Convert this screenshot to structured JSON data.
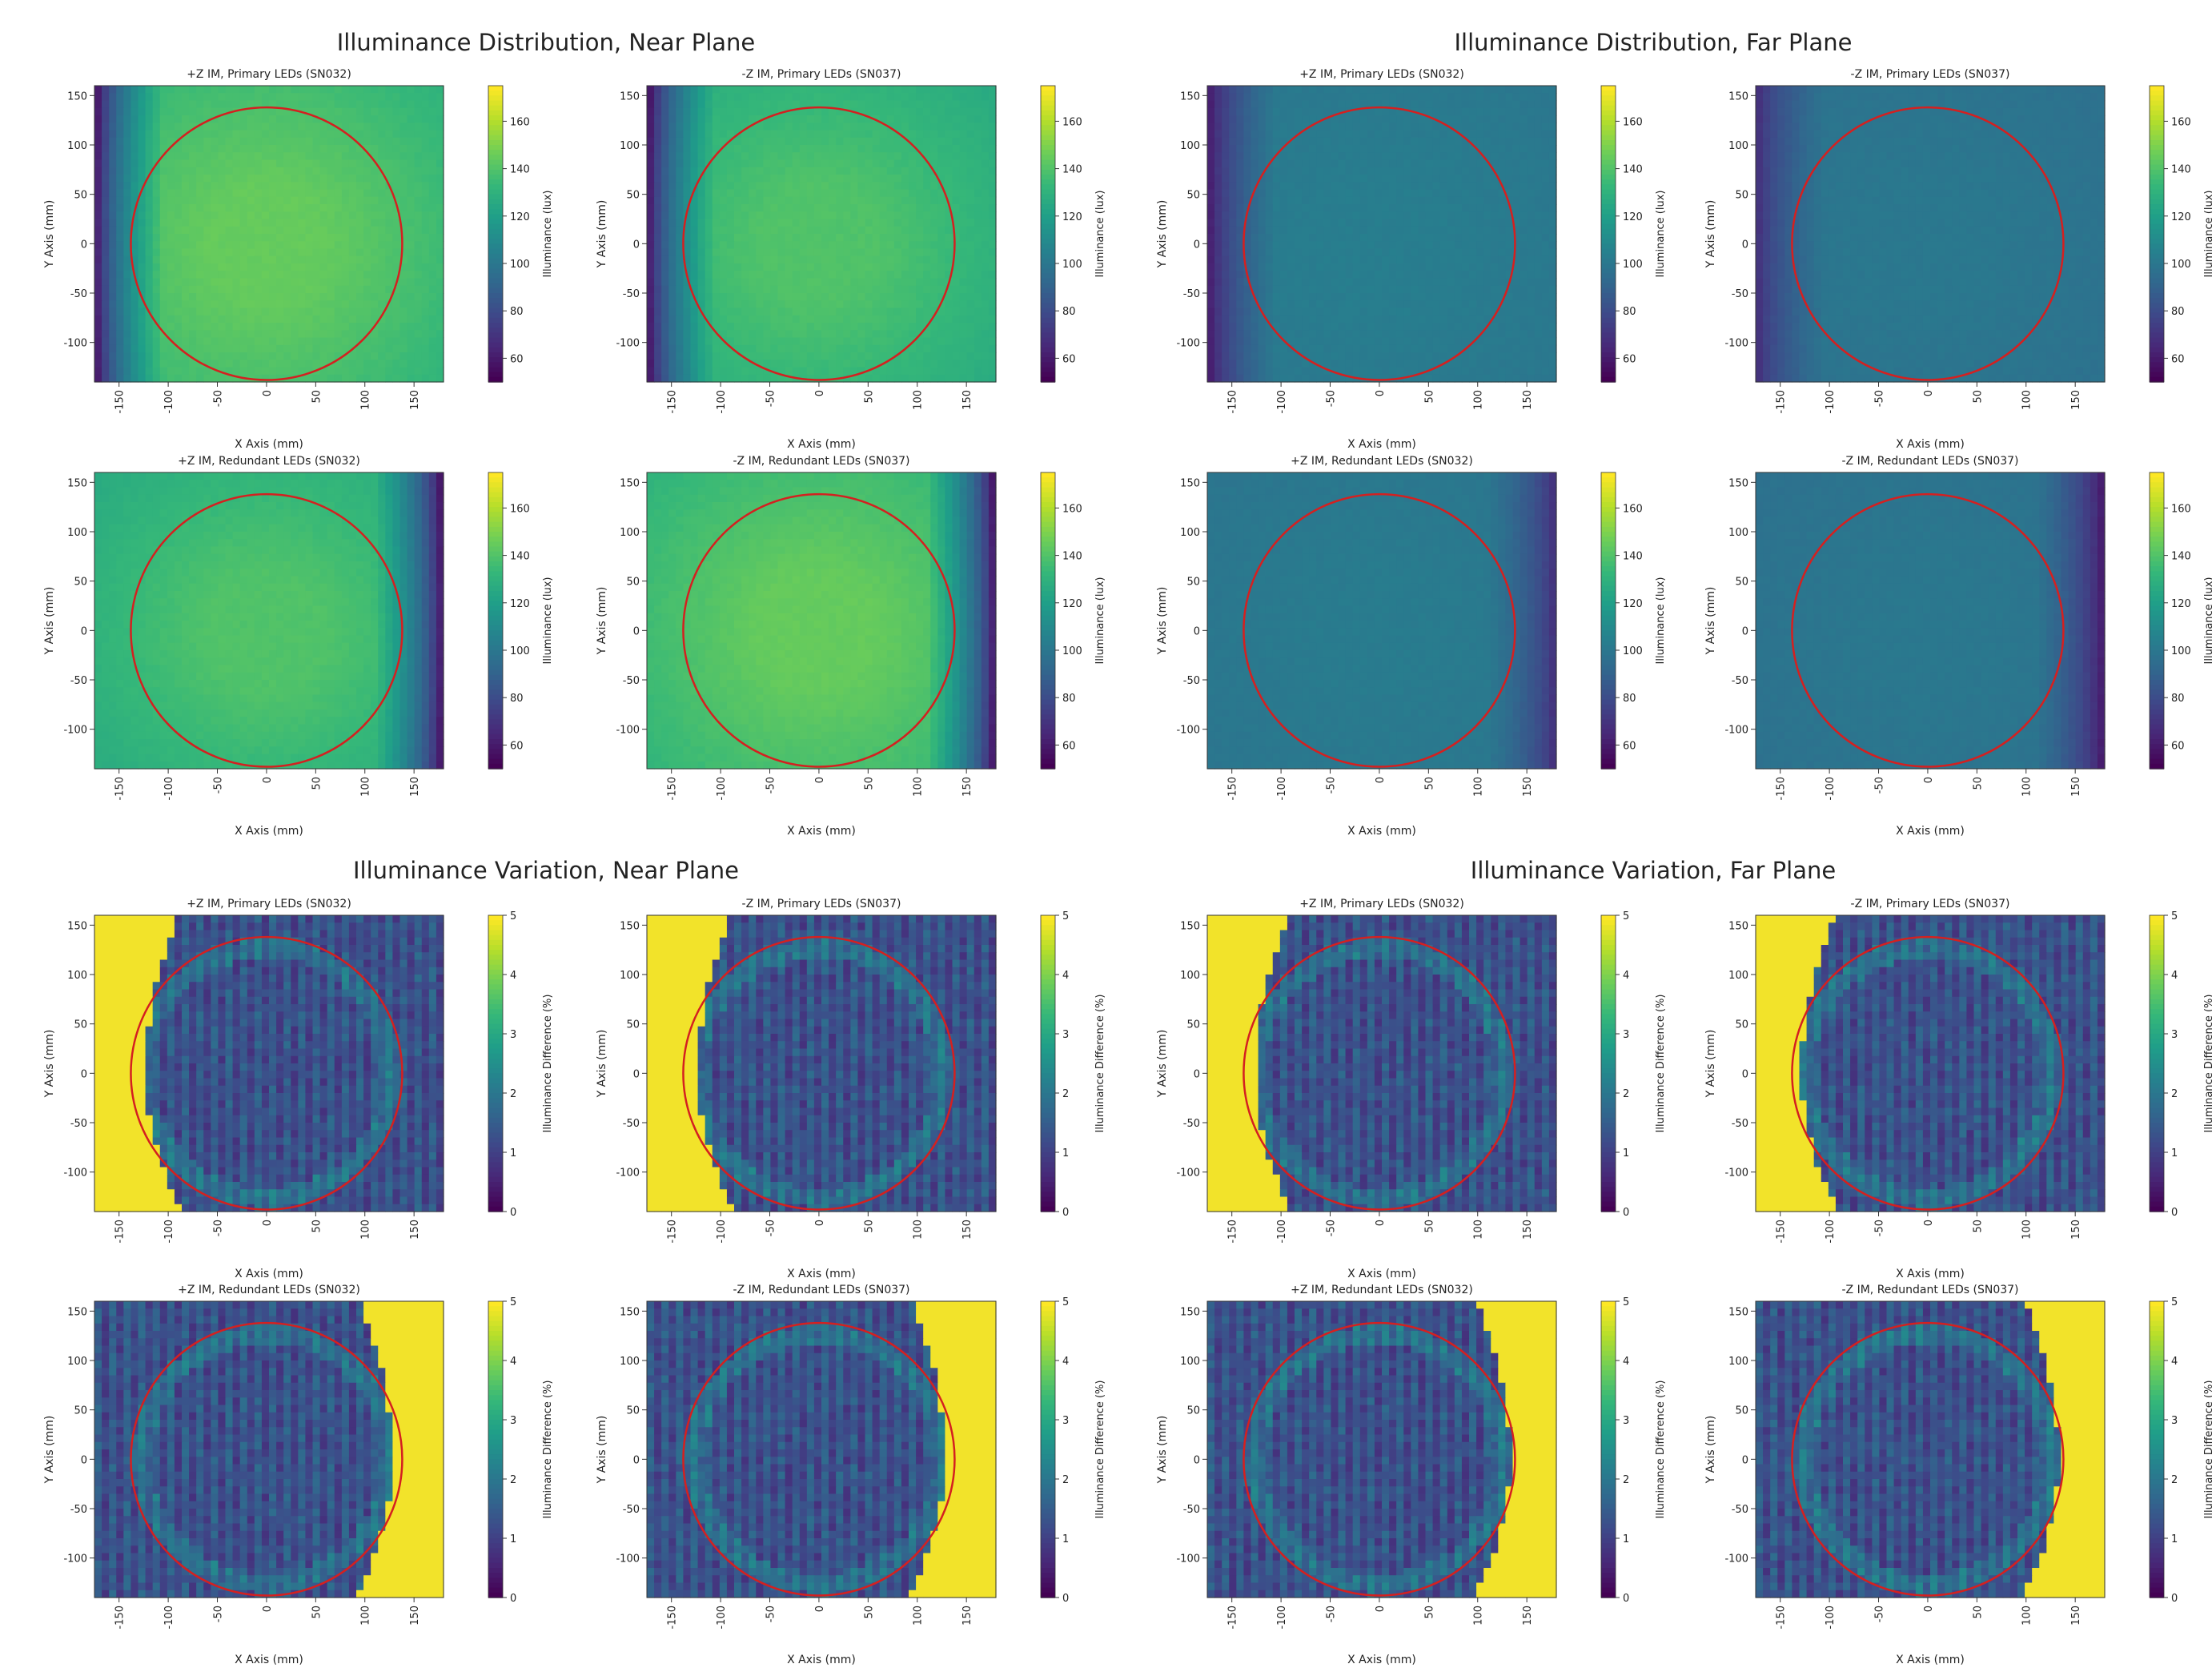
{
  "section_titles": {
    "dist_near": "Illuminance Distribution, Near Plane",
    "dist_far": "Illuminance Distribution, Far Plane",
    "var_near": "Illuminance Variation, Near Plane",
    "var_far": "Illuminance Variation, Far Plane"
  },
  "colors": {
    "circle": "#d42020",
    "viridis": [
      "#440154",
      "#482878",
      "#3e4989",
      "#31688e",
      "#26828e",
      "#1f9e89",
      "#35b779",
      "#6ece58",
      "#b5de2b",
      "#fde725"
    ],
    "bad_region": "#f2e32a"
  },
  "chart_data": [
    {
      "id": "dist-near-pz-primary",
      "type": "heatmap",
      "title": "+Z IM, Primary LEDs (SN032)",
      "xlabel": "X Axis (mm)",
      "ylabel": "Y Axis (mm)",
      "colorbar_label": "Illuminance (lux)",
      "clim": [
        50,
        175
      ],
      "xlim": [
        -175,
        180
      ],
      "ylim": [
        -140,
        160
      ],
      "xticks": [
        "-150",
        "-100",
        "-50",
        "0",
        "50",
        "100",
        "150"
      ],
      "yticks": [
        "150",
        "100",
        "50",
        "0",
        "-50",
        "-100"
      ],
      "cticks": [
        "160",
        "140",
        "120",
        "100",
        "80",
        "60"
      ],
      "circle": {
        "cx": 0,
        "cy": 0,
        "r": 138
      },
      "field": {
        "kind": "dist",
        "center": 145,
        "dark_side": "left",
        "edge_low": 55
      }
    },
    {
      "id": "dist-near-mz-primary",
      "type": "heatmap",
      "title": "-Z IM, Primary LEDs (SN037)",
      "xlabel": "X Axis (mm)",
      "ylabel": "Y Axis (mm)",
      "colorbar_label": "Illuminance (lux)",
      "clim": [
        50,
        175
      ],
      "xlim": [
        -175,
        180
      ],
      "ylim": [
        -140,
        160
      ],
      "xticks": [
        "-150",
        "-100",
        "-50",
        "0",
        "50",
        "100",
        "150"
      ],
      "yticks": [
        "150",
        "100",
        "50",
        "0",
        "-50",
        "-100"
      ],
      "cticks": [
        "160",
        "140",
        "120",
        "100",
        "80",
        "60"
      ],
      "circle": {
        "cx": 0,
        "cy": 0,
        "r": 138
      },
      "field": {
        "kind": "dist",
        "center": 140,
        "dark_side": "left",
        "edge_low": 55
      }
    },
    {
      "id": "dist-far-pz-primary",
      "type": "heatmap",
      "title": "+Z IM, Primary LEDs (SN032)",
      "xlabel": "X Axis (mm)",
      "ylabel": "Y Axis (mm)",
      "colorbar_label": "Illuminance (lux)",
      "clim": [
        50,
        175
      ],
      "xlim": [
        -175,
        180
      ],
      "ylim": [
        -140,
        160
      ],
      "xticks": [
        "-150",
        "-100",
        "-50",
        "0",
        "50",
        "100",
        "150"
      ],
      "yticks": [
        "150",
        "100",
        "50",
        "0",
        "-50",
        "-100"
      ],
      "cticks": [
        "160",
        "140",
        "120",
        "100",
        "80",
        "60"
      ],
      "circle": {
        "cx": 0,
        "cy": 0,
        "r": 138
      },
      "field": {
        "kind": "dist",
        "center": 103,
        "dark_side": "left",
        "edge_low": 55
      }
    },
    {
      "id": "dist-far-mz-primary",
      "type": "heatmap",
      "title": "-Z IM, Primary LEDs (SN037)",
      "xlabel": "X Axis (mm)",
      "ylabel": "Y Axis (mm)",
      "colorbar_label": "Illuminance (lux)",
      "clim": [
        50,
        175
      ],
      "xlim": [
        -175,
        180
      ],
      "ylim": [
        -140,
        160
      ],
      "xticks": [
        "-150",
        "-100",
        "-50",
        "0",
        "50",
        "100",
        "150"
      ],
      "yticks": [
        "150",
        "100",
        "50",
        "0",
        "-50",
        "-100"
      ],
      "cticks": [
        "160",
        "140",
        "120",
        "100",
        "80",
        "60"
      ],
      "circle": {
        "cx": 0,
        "cy": 0,
        "r": 138
      },
      "field": {
        "kind": "dist",
        "center": 100,
        "dark_side": "left",
        "edge_low": 65
      }
    },
    {
      "id": "dist-near-pz-redundant",
      "type": "heatmap",
      "title": "+Z IM, Redundant LEDs (SN032)",
      "xlabel": "X Axis (mm)",
      "ylabel": "Y Axis (mm)",
      "colorbar_label": "Illuminance (lux)",
      "clim": [
        50,
        175
      ],
      "xlim": [
        -175,
        180
      ],
      "ylim": [
        -140,
        160
      ],
      "xticks": [
        "-150",
        "-100",
        "-50",
        "0",
        "50",
        "100",
        "150"
      ],
      "yticks": [
        "150",
        "100",
        "50",
        "0",
        "-50",
        "-100"
      ],
      "cticks": [
        "160",
        "140",
        "120",
        "100",
        "80",
        "60"
      ],
      "circle": {
        "cx": 0,
        "cy": 0,
        "r": 138
      },
      "field": {
        "kind": "dist",
        "center": 140,
        "dark_side": "right",
        "edge_low": 55
      }
    },
    {
      "id": "dist-near-mz-redundant",
      "type": "heatmap",
      "title": "-Z IM, Redundant LEDs (SN037)",
      "xlabel": "X Axis (mm)",
      "ylabel": "Y Axis (mm)",
      "colorbar_label": "Illuminance (lux)",
      "clim": [
        50,
        175
      ],
      "xlim": [
        -175,
        180
      ],
      "ylim": [
        -140,
        160
      ],
      "xticks": [
        "-150",
        "-100",
        "-50",
        "0",
        "50",
        "100",
        "150"
      ],
      "yticks": [
        "150",
        "100",
        "50",
        "0",
        "-50",
        "-100"
      ],
      "cticks": [
        "160",
        "140",
        "120",
        "100",
        "80",
        "60"
      ],
      "circle": {
        "cx": 0,
        "cy": 0,
        "r": 138
      },
      "field": {
        "kind": "dist",
        "center": 145,
        "dark_side": "right",
        "edge_low": 55
      }
    },
    {
      "id": "dist-far-pz-redundant",
      "type": "heatmap",
      "title": "+Z IM, Redundant LEDs (SN032)",
      "xlabel": "X Axis (mm)",
      "ylabel": "Y Axis (mm)",
      "colorbar_label": "Illuminance (lux)",
      "clim": [
        50,
        175
      ],
      "xlim": [
        -175,
        180
      ],
      "ylim": [
        -140,
        160
      ],
      "xticks": [
        "-150",
        "-100",
        "-50",
        "0",
        "50",
        "100",
        "150"
      ],
      "yticks": [
        "150",
        "100",
        "50",
        "0",
        "-50",
        "-100"
      ],
      "cticks": [
        "160",
        "140",
        "120",
        "100",
        "80",
        "60"
      ],
      "circle": {
        "cx": 0,
        "cy": 0,
        "r": 138
      },
      "field": {
        "kind": "dist",
        "center": 102,
        "dark_side": "right",
        "edge_low": 65
      }
    },
    {
      "id": "dist-far-mz-redundant",
      "type": "heatmap",
      "title": "-Z IM, Redundant LEDs (SN037)",
      "xlabel": "X Axis (mm)",
      "ylabel": "Y Axis (mm)",
      "colorbar_label": "Illuminance (lux)",
      "clim": [
        50,
        175
      ],
      "xlim": [
        -175,
        180
      ],
      "ylim": [
        -140,
        160
      ],
      "xticks": [
        "-150",
        "-100",
        "-50",
        "0",
        "50",
        "100",
        "150"
      ],
      "yticks": [
        "150",
        "100",
        "50",
        "0",
        "-50",
        "-100"
      ],
      "cticks": [
        "160",
        "140",
        "120",
        "100",
        "80",
        "60"
      ],
      "circle": {
        "cx": 0,
        "cy": 0,
        "r": 138
      },
      "field": {
        "kind": "dist",
        "center": 100,
        "dark_side": "right",
        "edge_low": 55
      }
    },
    {
      "id": "var-near-pz-primary",
      "type": "heatmap",
      "title": "+Z IM, Primary LEDs (SN032)",
      "xlabel": "X Axis (mm)",
      "ylabel": "Y Axis (mm)",
      "colorbar_label": "Illuminance Difference (%)",
      "clim": [
        0,
        5
      ],
      "xlim": [
        -175,
        180
      ],
      "ylim": [
        -140,
        160
      ],
      "xticks": [
        "-150",
        "-100",
        "-50",
        "0",
        "50",
        "100",
        "150"
      ],
      "yticks": [
        "150",
        "100",
        "50",
        "0",
        "-50",
        "-100"
      ],
      "cticks": [
        "5",
        "4",
        "3",
        "2",
        "1",
        "0"
      ],
      "circle": {
        "cx": 0,
        "cy": 0,
        "r": 138
      },
      "field": {
        "kind": "var",
        "bright_side": "left",
        "bright_extent": 95
      }
    },
    {
      "id": "var-near-mz-primary",
      "type": "heatmap",
      "title": "-Z IM, Primary LEDs (SN037)",
      "xlabel": "X Axis (mm)",
      "ylabel": "Y Axis (mm)",
      "colorbar_label": "Illuminance Difference (%)",
      "clim": [
        0,
        5
      ],
      "xlim": [
        -175,
        180
      ],
      "ylim": [
        -140,
        160
      ],
      "xticks": [
        "-150",
        "-100",
        "-50",
        "0",
        "50",
        "100",
        "150"
      ],
      "yticks": [
        "150",
        "100",
        "50",
        "0",
        "-50",
        "-100"
      ],
      "cticks": [
        "5",
        "4",
        "3",
        "2",
        "1",
        "0"
      ],
      "circle": {
        "cx": 0,
        "cy": 0,
        "r": 138
      },
      "field": {
        "kind": "var",
        "bright_side": "left",
        "bright_extent": 95
      }
    },
    {
      "id": "var-far-pz-primary",
      "type": "heatmap",
      "title": "+Z IM, Primary LEDs (SN032)",
      "xlabel": "X Axis (mm)",
      "ylabel": "Y Axis (mm)",
      "colorbar_label": "Illuminance Difference (%)",
      "clim": [
        0,
        5
      ],
      "xlim": [
        -175,
        180
      ],
      "ylim": [
        -140,
        160
      ],
      "xticks": [
        "-150",
        "-100",
        "-50",
        "0",
        "50",
        "100",
        "150"
      ],
      "yticks": [
        "150",
        "100",
        "50",
        "0",
        "-50",
        "-100"
      ],
      "cticks": [
        "5",
        "4",
        "3",
        "2",
        "1",
        "0"
      ],
      "circle": {
        "cx": 0,
        "cy": 0,
        "r": 138
      },
      "field": {
        "kind": "var",
        "bright_side": "left",
        "bright_extent": 90
      }
    },
    {
      "id": "var-far-mz-primary",
      "type": "heatmap",
      "title": "-Z IM, Primary LEDs (SN037)",
      "xlabel": "X Axis (mm)",
      "ylabel": "Y Axis (mm)",
      "colorbar_label": "Illuminance Difference (%)",
      "clim": [
        0,
        5
      ],
      "xlim": [
        -175,
        180
      ],
      "ylim": [
        -140,
        160
      ],
      "xticks": [
        "-150",
        "-100",
        "-50",
        "0",
        "50",
        "100",
        "150"
      ],
      "yticks": [
        "150",
        "100",
        "50",
        "0",
        "-50",
        "-100"
      ],
      "cticks": [
        "5",
        "4",
        "3",
        "2",
        "1",
        "0"
      ],
      "circle": {
        "cx": 0,
        "cy": 0,
        "r": 138
      },
      "field": {
        "kind": "var",
        "bright_side": "left",
        "bright_extent": 85
      }
    },
    {
      "id": "var-near-pz-redundant",
      "type": "heatmap",
      "title": "+Z IM, Redundant LEDs (SN032)",
      "xlabel": "X Axis (mm)",
      "ylabel": "Y Axis (mm)",
      "colorbar_label": "Illuminance Difference (%)",
      "clim": [
        0,
        5
      ],
      "xlim": [
        -175,
        180
      ],
      "ylim": [
        -140,
        160
      ],
      "xticks": [
        "-150",
        "-100",
        "-50",
        "0",
        "50",
        "100",
        "150"
      ],
      "yticks": [
        "150",
        "100",
        "50",
        "0",
        "-50",
        "-100"
      ],
      "cticks": [
        "5",
        "4",
        "3",
        "2",
        "1",
        "0"
      ],
      "circle": {
        "cx": 0,
        "cy": 0,
        "r": 138
      },
      "field": {
        "kind": "var",
        "bright_side": "right",
        "bright_extent": 95
      }
    },
    {
      "id": "var-near-mz-redundant",
      "type": "heatmap",
      "title": "-Z IM, Redundant LEDs (SN037)",
      "xlabel": "X Axis (mm)",
      "ylabel": "Y Axis (mm)",
      "colorbar_label": "Illuminance Difference (%)",
      "clim": [
        0,
        5
      ],
      "xlim": [
        -175,
        180
      ],
      "ylim": [
        -140,
        160
      ],
      "xticks": [
        "-150",
        "-100",
        "-50",
        "0",
        "50",
        "100",
        "150"
      ],
      "yticks": [
        "150",
        "100",
        "50",
        "0",
        "-50",
        "-100"
      ],
      "cticks": [
        "5",
        "4",
        "3",
        "2",
        "1",
        "0"
      ],
      "circle": {
        "cx": 0,
        "cy": 0,
        "r": 138
      },
      "field": {
        "kind": "var",
        "bright_side": "right",
        "bright_extent": 95
      }
    },
    {
      "id": "var-far-pz-redundant",
      "type": "heatmap",
      "title": "+Z IM, Redundant LEDs (SN032)",
      "xlabel": "X Axis (mm)",
      "ylabel": "Y Axis (mm)",
      "colorbar_label": "Illuminance Difference (%)",
      "clim": [
        0,
        5
      ],
      "xlim": [
        -175,
        180
      ],
      "ylim": [
        -140,
        160
      ],
      "xticks": [
        "-150",
        "-100",
        "-50",
        "0",
        "50",
        "100",
        "150"
      ],
      "yticks": [
        "150",
        "100",
        "50",
        "0",
        "-50",
        "-100"
      ],
      "cticks": [
        "5",
        "4",
        "3",
        "2",
        "1",
        "0"
      ],
      "circle": {
        "cx": 0,
        "cy": 0,
        "r": 138
      },
      "field": {
        "kind": "var",
        "bright_side": "right",
        "bright_extent": 85
      }
    },
    {
      "id": "var-far-mz-redundant",
      "type": "heatmap",
      "title": "-Z IM, Redundant LEDs (SN037)",
      "xlabel": "X Axis (mm)",
      "ylabel": "Y Axis (mm)",
      "colorbar_label": "Illuminance Difference (%)",
      "clim": [
        0,
        5
      ],
      "xlim": [
        -175,
        180
      ],
      "ylim": [
        -140,
        160
      ],
      "xticks": [
        "-150",
        "-100",
        "-50",
        "0",
        "50",
        "100",
        "150"
      ],
      "yticks": [
        "150",
        "100",
        "50",
        "0",
        "-50",
        "-100"
      ],
      "cticks": [
        "5",
        "4",
        "3",
        "2",
        "1",
        "0"
      ],
      "circle": {
        "cx": 0,
        "cy": 0,
        "r": 138
      },
      "field": {
        "kind": "var",
        "bright_side": "right",
        "bright_extent": 85
      }
    }
  ]
}
